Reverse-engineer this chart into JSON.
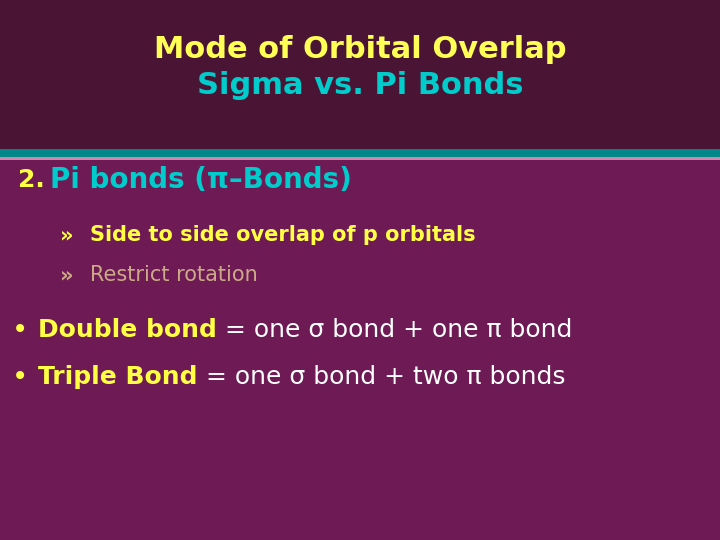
{
  "title_line1": "Mode of Orbital Overlap",
  "title_line2": "Sigma vs. Pi Bonds",
  "title_line1_color": "#FFFF55",
  "title_line2_color": "#00CCCC",
  "title_fontsize": 22,
  "bg_color_top": "#4a1535",
  "bg_color_main": "#6e1a55",
  "separator_color1": "#008888",
  "separator_color2": "#cc88aa",
  "number_label": "2.",
  "number_color": "#FFFF44",
  "number_fontsize": 18,
  "heading_text": "Pi bonds (π–Bonds)",
  "heading_color": "#00CCCC",
  "heading_fontsize": 20,
  "bullet1_marker": "»",
  "bullet1_text": "Side to side overlap of p orbitals",
  "bullet1_color": "#FFFF44",
  "bullet1_fontsize": 15,
  "bullet2_marker": "»",
  "bullet2_text": "Restrict rotation",
  "bullet2_color": "#CCAA88",
  "bullet2_fontsize": 15,
  "dot_color": "#FFFF44",
  "dot_fontsize": 20,
  "line3_bold": "Double bond",
  "line3_bold_color": "#FFFF44",
  "line3_rest": " = one σ bond + one π bond",
  "line3_rest_color": "#FFFFFF",
  "line3_fontsize": 18,
  "line4_bold": "Triple Bond",
  "line4_bold_color": "#FFFF44",
  "line4_rest": " = one σ bond + two π bonds",
  "line4_rest_color": "#FFFFFF",
  "line4_fontsize": 18
}
